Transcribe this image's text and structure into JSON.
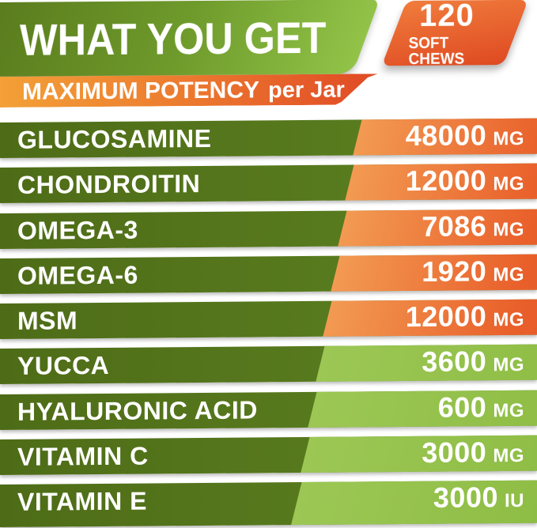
{
  "header": {
    "title": "WHAT YOU GET",
    "badge": {
      "count": "120",
      "label": "SOFT CHEWS"
    },
    "banner": {
      "strong": "MAXIMUM POTENCY",
      "light": "per Jar"
    }
  },
  "colors": {
    "dark_green": "#55771e",
    "banner_green_right": "#92c348",
    "light_green_panel": "#8eba45",
    "orange_panel": "#e6562a",
    "amber_banner": "#f3a037",
    "badge_orange": "#e35226",
    "text": "#ffffff"
  },
  "rows": [
    {
      "label": "GLUCOSAMINE",
      "value": "48000",
      "unit": "MG",
      "accent": "orange"
    },
    {
      "label": "CHONDROITIN",
      "value": "12000",
      "unit": "MG",
      "accent": "orange"
    },
    {
      "label": "OMEGA-3",
      "value": "7086",
      "unit": "MG",
      "accent": "orange"
    },
    {
      "label": "OMEGA-6",
      "value": "1920",
      "unit": "MG",
      "accent": "orange"
    },
    {
      "label": "MSM",
      "value": "12000",
      "unit": "MG",
      "accent": "orange"
    },
    {
      "label": "YUCCA",
      "value": "3600",
      "unit": "MG",
      "accent": "green"
    },
    {
      "label": "HYALURONIC ACID",
      "value": "600",
      "unit": "MG",
      "accent": "green"
    },
    {
      "label": "VITAMIN C",
      "value": "3000",
      "unit": "MG",
      "accent": "green"
    },
    {
      "label": "VITAMIN E",
      "value": "3000",
      "unit": "IU",
      "accent": "green"
    }
  ]
}
